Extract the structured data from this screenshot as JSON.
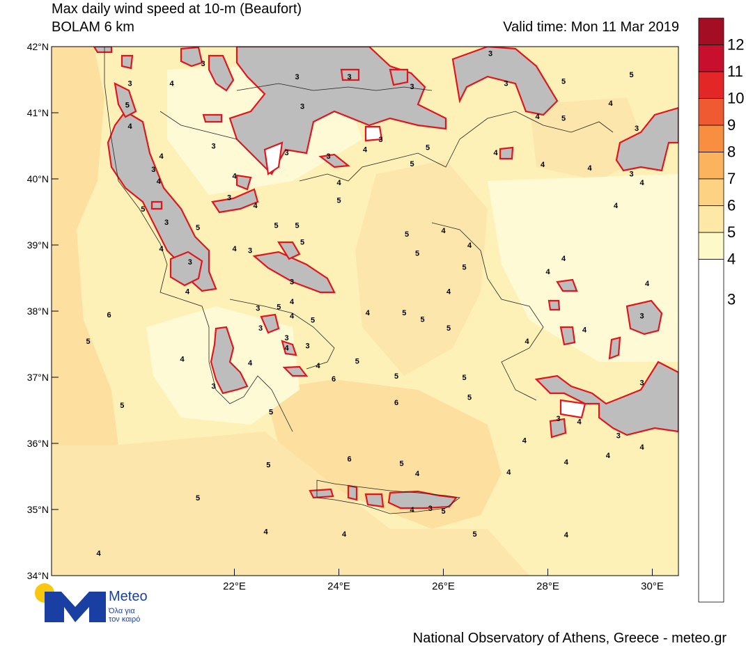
{
  "header": {
    "title_line1": "Max daily wind speed at 10-m (Beaufort)",
    "title_line2": "BOLAM 6 km",
    "valid_time": "Valid time: Mon 11 Mar 2019"
  },
  "map": {
    "lon_labels": [
      "22°E",
      "24°E",
      "26°E",
      "28°E",
      "30°E"
    ],
    "lat_labels": [
      "42°N",
      "41°N",
      "40°N",
      "39°N",
      "38°N",
      "37°N",
      "36°N",
      "35°N",
      "34°N"
    ],
    "land_mask_color": "#bdbdbd",
    "contour_highlight_color": "#e0161c",
    "field_values": [
      {
        "label": "3",
        "lon": 20.0,
        "lat": 41.45
      },
      {
        "label": "4",
        "lon": 20.8,
        "lat": 41.45
      },
      {
        "label": "3",
        "lon": 21.4,
        "lat": 41.75
      },
      {
        "label": "3",
        "lon": 23.2,
        "lat": 41.55
      },
      {
        "label": "3",
        "lon": 23.3,
        "lat": 41.1
      },
      {
        "label": "3",
        "lon": 24.2,
        "lat": 41.55
      },
      {
        "label": "3",
        "lon": 25.4,
        "lat": 41.4
      },
      {
        "label": "5",
        "lon": 19.95,
        "lat": 41.12
      },
      {
        "label": "4",
        "lon": 20.0,
        "lat": 40.8
      },
      {
        "label": "3",
        "lon": 21.6,
        "lat": 40.5
      },
      {
        "label": "4",
        "lon": 20.6,
        "lat": 40.35
      },
      {
        "label": "4",
        "lon": 22.0,
        "lat": 40.05
      },
      {
        "label": "3",
        "lon": 20.45,
        "lat": 40.15
      },
      {
        "label": "4",
        "lon": 20.55,
        "lat": 39.97
      },
      {
        "label": "3",
        "lon": 21.9,
        "lat": 39.72
      },
      {
        "label": "4",
        "lon": 22.4,
        "lat": 39.6
      },
      {
        "label": "5",
        "lon": 24.0,
        "lat": 39.68
      },
      {
        "label": "5",
        "lon": 20.25,
        "lat": 39.55
      },
      {
        "label": "3",
        "lon": 20.7,
        "lat": 39.35
      },
      {
        "label": "5",
        "lon": 21.3,
        "lat": 39.27
      },
      {
        "label": "5",
        "lon": 22.8,
        "lat": 39.3
      },
      {
        "label": "3",
        "lon": 23.0,
        "lat": 40.4
      },
      {
        "label": "3",
        "lon": 23.8,
        "lat": 40.35
      },
      {
        "label": "4",
        "lon": 24.0,
        "lat": 39.95
      },
      {
        "label": "4",
        "lon": 24.5,
        "lat": 40.45
      },
      {
        "label": "3",
        "lon": 24.8,
        "lat": 40.6
      },
      {
        "label": "5",
        "lon": 25.7,
        "lat": 40.48
      },
      {
        "label": "5",
        "lon": 25.4,
        "lat": 40.23
      },
      {
        "label": "4",
        "lon": 27.0,
        "lat": 40.4
      },
      {
        "label": "4",
        "lon": 27.9,
        "lat": 40.22
      },
      {
        "label": "4",
        "lon": 28.8,
        "lat": 40.17
      },
      {
        "label": "3",
        "lon": 29.6,
        "lat": 40.08
      },
      {
        "label": "4",
        "lon": 29.8,
        "lat": 39.95
      },
      {
        "label": "4",
        "lon": 29.3,
        "lat": 39.6
      },
      {
        "label": "3",
        "lon": 26.9,
        "lat": 41.9
      },
      {
        "label": "3",
        "lon": 27.2,
        "lat": 41.45
      },
      {
        "label": "5",
        "lon": 28.3,
        "lat": 41.48
      },
      {
        "label": "5",
        "lon": 29.6,
        "lat": 41.58
      },
      {
        "label": "4",
        "lon": 29.2,
        "lat": 41.15
      },
      {
        "label": "4",
        "lon": 27.8,
        "lat": 40.95
      },
      {
        "label": "5",
        "lon": 28.3,
        "lat": 40.92
      },
      {
        "label": "3",
        "lon": 29.7,
        "lat": 40.77
      },
      {
        "label": "4",
        "lon": 22.0,
        "lat": 38.95
      },
      {
        "label": "3",
        "lon": 22.3,
        "lat": 38.92
      },
      {
        "label": "5",
        "lon": 23.2,
        "lat": 39.3
      },
      {
        "label": "5",
        "lon": 23.3,
        "lat": 39.05
      },
      {
        "label": "5",
        "lon": 25.3,
        "lat": 39.17
      },
      {
        "label": "4",
        "lon": 26.0,
        "lat": 39.22
      },
      {
        "label": "4",
        "lon": 26.5,
        "lat": 39.0
      },
      {
        "label": "5",
        "lon": 25.5,
        "lat": 38.88
      },
      {
        "label": "5",
        "lon": 26.4,
        "lat": 38.67
      },
      {
        "label": "4",
        "lon": 28.3,
        "lat": 38.8
      },
      {
        "label": "4",
        "lon": 28.0,
        "lat": 38.6
      },
      {
        "label": "4",
        "lon": 29.9,
        "lat": 38.42
      },
      {
        "label": "4",
        "lon": 20.6,
        "lat": 38.95
      },
      {
        "label": "3",
        "lon": 21.15,
        "lat": 38.75
      },
      {
        "label": "3",
        "lon": 23.1,
        "lat": 38.45
      },
      {
        "label": "4",
        "lon": 21.1,
        "lat": 38.3
      },
      {
        "label": "4",
        "lon": 26.1,
        "lat": 38.3
      },
      {
        "label": "6",
        "lon": 19.6,
        "lat": 37.95
      },
      {
        "label": "3",
        "lon": 22.45,
        "lat": 38.05
      },
      {
        "label": "5",
        "lon": 22.85,
        "lat": 38.07
      },
      {
        "label": "4",
        "lon": 23.1,
        "lat": 38.15
      },
      {
        "label": "4",
        "lon": 23.1,
        "lat": 37.93
      },
      {
        "label": "5",
        "lon": 23.5,
        "lat": 37.87
      },
      {
        "label": "4",
        "lon": 24.55,
        "lat": 37.98
      },
      {
        "label": "5",
        "lon": 25.25,
        "lat": 37.98
      },
      {
        "label": "5",
        "lon": 25.6,
        "lat": 37.88
      },
      {
        "label": "5",
        "lon": 26.1,
        "lat": 37.75
      },
      {
        "label": "4",
        "lon": 28.7,
        "lat": 37.72
      },
      {
        "label": "3",
        "lon": 29.8,
        "lat": 37.93
      },
      {
        "label": "5",
        "lon": 19.2,
        "lat": 37.55
      },
      {
        "label": "3",
        "lon": 22.5,
        "lat": 37.75
      },
      {
        "label": "3",
        "lon": 23.0,
        "lat": 37.6
      },
      {
        "label": "4",
        "lon": 23.0,
        "lat": 37.45
      },
      {
        "label": "4",
        "lon": 27.6,
        "lat": 37.55
      },
      {
        "label": "3",
        "lon": 23.4,
        "lat": 37.48
      },
      {
        "label": "4",
        "lon": 23.6,
        "lat": 37.18
      },
      {
        "label": "4",
        "lon": 21.0,
        "lat": 37.28
      },
      {
        "label": "4",
        "lon": 22.3,
        "lat": 37.22
      },
      {
        "label": "5",
        "lon": 24.35,
        "lat": 37.25
      },
      {
        "label": "6",
        "lon": 23.9,
        "lat": 36.98
      },
      {
        "label": "5",
        "lon": 25.1,
        "lat": 37.02
      },
      {
        "label": "5",
        "lon": 26.4,
        "lat": 37.0
      },
      {
        "label": "3",
        "lon": 29.8,
        "lat": 36.92
      },
      {
        "label": "3",
        "lon": 21.6,
        "lat": 36.87
      },
      {
        "label": "6",
        "lon": 25.1,
        "lat": 36.62
      },
      {
        "label": "5",
        "lon": 26.5,
        "lat": 36.7
      },
      {
        "label": "5",
        "lon": 19.85,
        "lat": 36.58
      },
      {
        "label": "5",
        "lon": 22.7,
        "lat": 36.48
      },
      {
        "label": "3",
        "lon": 28.2,
        "lat": 36.38
      },
      {
        "label": "4",
        "lon": 28.6,
        "lat": 36.33
      },
      {
        "label": "3",
        "lon": 29.35,
        "lat": 36.12
      },
      {
        "label": "4",
        "lon": 27.55,
        "lat": 36.05
      },
      {
        "label": "4",
        "lon": 29.8,
        "lat": 35.95
      },
      {
        "label": "4",
        "lon": 29.15,
        "lat": 35.82
      },
      {
        "label": "6",
        "lon": 24.2,
        "lat": 35.77
      },
      {
        "label": "5",
        "lon": 25.2,
        "lat": 35.7
      },
      {
        "label": "4",
        "lon": 28.35,
        "lat": 35.72
      },
      {
        "label": "5",
        "lon": 22.65,
        "lat": 35.68
      },
      {
        "label": "4",
        "lon": 25.5,
        "lat": 35.55
      },
      {
        "label": "4",
        "lon": 27.25,
        "lat": 35.57
      },
      {
        "label": "5",
        "lon": 21.3,
        "lat": 35.18
      },
      {
        "label": "4",
        "lon": 25.4,
        "lat": 35.0
      },
      {
        "label": "3",
        "lon": 25.75,
        "lat": 35.02
      },
      {
        "label": "5",
        "lon": 26.0,
        "lat": 34.98
      },
      {
        "label": "4",
        "lon": 22.6,
        "lat": 34.67
      },
      {
        "label": "4",
        "lon": 24.1,
        "lat": 34.63
      },
      {
        "label": "5",
        "lon": 26.6,
        "lat": 34.63
      },
      {
        "label": "4",
        "lon": 28.35,
        "lat": 34.62
      },
      {
        "label": "4",
        "lon": 19.4,
        "lat": 34.34
      }
    ]
  },
  "colorbar": {
    "levels": [
      "12",
      "11",
      "10",
      "9",
      "8",
      "7",
      "6",
      "5",
      "4",
      "3"
    ],
    "colors": [
      "#a40e25",
      "#c8102e",
      "#e22726",
      "#f05a32",
      "#f88f40",
      "#fbb35e",
      "#fdd283",
      "#fde8a7",
      "#fef9c8",
      "#ffffff"
    ]
  },
  "footer": {
    "credit": "National Observatory of Athens, Greece - meteo.gr"
  },
  "logo": {
    "name": "Meteo",
    "tagline_line1": "Όλα για",
    "tagline_line2": "τον καιρό"
  }
}
